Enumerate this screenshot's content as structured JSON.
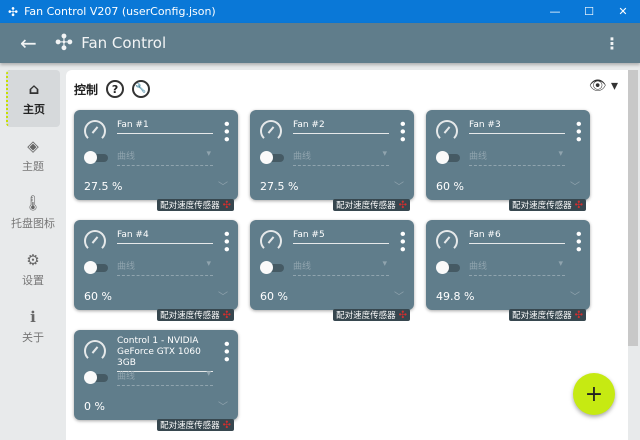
{
  "window": {
    "title": "Fan Control V207 (userConfig.json)",
    "minimize": "—",
    "maximize": "☐",
    "close": "✕"
  },
  "header": {
    "title": "Fan Control"
  },
  "sidebar": {
    "items": [
      {
        "label": "主页",
        "icon": "home-icon",
        "glyph": "⌂",
        "active": true
      },
      {
        "label": "主题",
        "icon": "paint-bucket-icon",
        "glyph": "◈"
      },
      {
        "label": "托盘图标",
        "icon": "thermometer-icon",
        "glyph": "🌡"
      },
      {
        "label": "设置",
        "icon": "gear-icon",
        "glyph": "⚙"
      },
      {
        "label": "关于",
        "icon": "info-icon",
        "glyph": "ℹ"
      }
    ]
  },
  "main": {
    "title": "控制",
    "help": "?",
    "tool": "🔧",
    "eye": "👁 ▾"
  },
  "cards": [
    {
      "name": "Fan #1",
      "curve": "曲线",
      "value": "27.5 %",
      "pair": "配对速度传感器"
    },
    {
      "name": "Fan #2",
      "curve": "曲线",
      "value": "27.5 %",
      "pair": "配对速度传感器"
    },
    {
      "name": "Fan #3",
      "curve": "曲线",
      "value": "60 %",
      "pair": "配对速度传感器"
    },
    {
      "name": "Fan #4",
      "curve": "曲线",
      "value": "60 %",
      "pair": "配对速度传感器"
    },
    {
      "name": "Fan #5",
      "curve": "曲线",
      "value": "60 %",
      "pair": "配对速度传感器"
    },
    {
      "name": "Fan #6",
      "curve": "曲线",
      "value": "49.8 %",
      "pair": "配对速度传感器"
    },
    {
      "name": "Control 1 - NVIDIA GeForce GTX 1060 3GB",
      "curve": "曲线",
      "value": "0 %",
      "pair": "配对速度传感器"
    }
  ],
  "fab": "+"
}
